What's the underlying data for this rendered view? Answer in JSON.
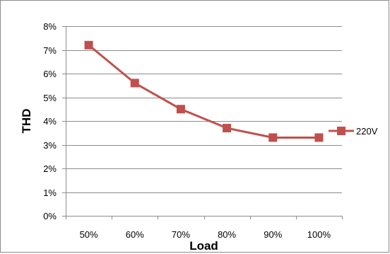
{
  "chart_data": {
    "type": "line",
    "categories": [
      "50%",
      "60%",
      "70%",
      "80%",
      "90%",
      "100%"
    ],
    "series": [
      {
        "name": "220V",
        "values": [
          7.2,
          5.6,
          4.5,
          3.7,
          3.3,
          3.3
        ]
      }
    ],
    "xlabel": "Load",
    "ylabel": "THD",
    "ylim": [
      0,
      8
    ],
    "y_ticks": [
      "0%",
      "1%",
      "2%",
      "3%",
      "4%",
      "5%",
      "6%",
      "7%",
      "8%"
    ],
    "grid": true,
    "legend_position": "right",
    "series_color": "#C0504D"
  }
}
